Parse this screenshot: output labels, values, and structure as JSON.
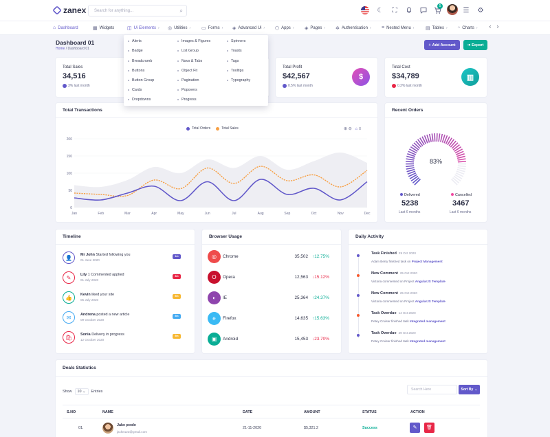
{
  "topbar": {
    "logo": "zanex",
    "search_placeholder": "Search for anything...",
    "cart_count": "5",
    "icons": [
      "flag-us-icon",
      "moon-icon",
      "fullscreen-icon",
      "bell-icon",
      "message-icon",
      "cart-icon",
      "avatar",
      "menu-icon",
      "gear-icon"
    ]
  },
  "nav": {
    "items": [
      {
        "label": "Dashboard",
        "icon": "home-icon",
        "active": true
      },
      {
        "label": "Widgets",
        "icon": "grid-icon"
      },
      {
        "label": "Ui Elements",
        "icon": "box-icon",
        "has_menu": true,
        "active": true
      },
      {
        "label": "Utilities",
        "icon": "utilities-icon",
        "has_menu": true
      },
      {
        "label": "Forms",
        "icon": "file-icon",
        "has_menu": true
      },
      {
        "label": "Advanced Ui",
        "icon": "layers-icon",
        "has_menu": true
      },
      {
        "label": "Apps",
        "icon": "package-icon",
        "has_menu": true
      },
      {
        "label": "Pages",
        "icon": "layers-icon",
        "has_menu": true
      },
      {
        "label": "Authentication",
        "icon": "settings-icon",
        "has_menu": true
      },
      {
        "label": "Nested Menu",
        "icon": "sliders-icon",
        "has_menu": true
      },
      {
        "label": "Tables",
        "icon": "table-icon",
        "has_menu": true
      },
      {
        "label": "Charts",
        "icon": "pie-icon",
        "has_menu": true
      }
    ]
  },
  "dropdown": {
    "col1": [
      "Alerts",
      "Badge",
      "Breadcrumb",
      "Buttons",
      "Button Group",
      "Cards",
      "Dropdowns"
    ],
    "col2": [
      "Images & Figures",
      "List Group",
      "Navs & Tabs",
      "Object Fit",
      "Pagination",
      "Popovers",
      "Progress"
    ],
    "col3": [
      "Spinners",
      "Toasts",
      "Tags",
      "Tooltips",
      "Typography"
    ]
  },
  "page": {
    "title": "Dashboard 01",
    "breadcrumb_home": "Home",
    "breadcrumb_current": "Dashboard 01",
    "add_account": "Add Account",
    "export": "Export"
  },
  "stats": [
    {
      "label": "Total Sales",
      "value": "34,516",
      "sub": "3% last month",
      "color": "#6259ca",
      "icon": "",
      "direction": "up"
    },
    {
      "label": "Total Profit",
      "value": "$42,567",
      "sub": "0.5% last month",
      "color": "#6259ca",
      "icon": "$",
      "direction": "up"
    },
    {
      "label": "Total Cost",
      "value": "$34,789",
      "sub": "0.2% last month",
      "color": "#e82646",
      "icon": "▥",
      "direction": "down"
    }
  ],
  "transactions": {
    "title": "Total Transactions",
    "legend": [
      "Total Orders",
      "Total Sales"
    ]
  },
  "chart_data": {
    "type": "line",
    "title": "Total Transactions",
    "categories": [
      "Jan",
      "Feb",
      "Mar",
      "Apr",
      "May",
      "Jun",
      "Jul",
      "Aug",
      "Sep",
      "Oct",
      "Nov",
      "Dec"
    ],
    "ylim": [
      0,
      200
    ],
    "yticks": [
      0,
      50,
      100,
      150,
      200
    ],
    "series": [
      {
        "name": "Total Orders",
        "color": "#6259ca",
        "values": [
          28,
          22,
          42,
          62,
          20,
          75,
          20,
          82,
          38,
          56,
          22,
          75
        ]
      },
      {
        "name": "Total Sales",
        "color": "#f7a045",
        "values": [
          42,
          38,
          35,
          80,
          55,
          115,
          70,
          120,
          78,
          95,
          60,
          108
        ]
      },
      {
        "name": "",
        "color": "#eeeef3",
        "values": [
          65,
          60,
          80,
          118,
          100,
          140,
          115,
          150,
          110,
          135,
          160,
          130
        ]
      }
    ]
  },
  "recent_orders": {
    "title": "Recent Orders",
    "percent": "83%",
    "delivered_label": "Delivered",
    "delivered_value": "5238",
    "delivered_sub": "Last 6 months",
    "cancelled_label": "Cancelled",
    "cancelled_value": "3467",
    "cancelled_sub": "Last 6 months",
    "fraction": 0.83
  },
  "timeline": {
    "title": "Timeline",
    "items": [
      {
        "name": "Mr John",
        "text": "Started following you",
        "date": "01 June 2020",
        "pill": "1m",
        "color": "#6259ca",
        "icon": "👤"
      },
      {
        "name": "Lily",
        "text": "1 Commented applied",
        "date": "01 July 2020",
        "pill": "3m",
        "color": "#e82646",
        "icon": "✎"
      },
      {
        "name": "Kevin",
        "text": "liked your site",
        "date": "05 July 2020",
        "pill": "5m",
        "color": "#09ad95",
        "icon": "👍"
      },
      {
        "name": "Andrena",
        "text": "posted a new article",
        "date": "09 October 2020",
        "pill": "5m",
        "color": "#45aaf2",
        "icon": "✉"
      },
      {
        "name": "Sonia",
        "text": "Delivery in progress",
        "date": "12 October 2020",
        "pill": "5m",
        "color": "#e82646",
        "icon": "🛍"
      }
    ],
    "pill_colors": [
      "#6259ca",
      "#e82646",
      "#f7b731",
      "#45aaf2",
      "#f7b731"
    ]
  },
  "browser": {
    "title": "Browser Usage",
    "items": [
      {
        "name": "Chrome",
        "value": "35,502",
        "pct": "12.75%",
        "up": true,
        "color": "#ef4b4b",
        "icon": "◎"
      },
      {
        "name": "Opera",
        "value": "12,563",
        "pct": "15.12%",
        "up": false,
        "color": "#c8102e",
        "icon": "O"
      },
      {
        "name": "IE",
        "value": "25,364",
        "pct": "24.37%",
        "up": true,
        "color": "#8e44ad",
        "icon": "◐"
      },
      {
        "name": "Firefox",
        "value": "14,635",
        "pct": "15.63%",
        "up": true,
        "color": "#3abaf4",
        "icon": "e"
      },
      {
        "name": "Android",
        "value": "15,453",
        "pct": "23.70%",
        "up": false,
        "color": "#09ad95",
        "icon": "▣"
      }
    ]
  },
  "activity": {
    "title": "Daily Activity",
    "items": [
      {
        "title": "Task Finished",
        "date": "29 Oct 2020",
        "desc": "Adam Berry finished task on",
        "link": "Project Management",
        "color": "#6259ca"
      },
      {
        "title": "New Comment",
        "date": "25 Oct 2020",
        "desc": "Victoria commented on Project",
        "link": "AngularJS Template",
        "color": "#f7592c"
      },
      {
        "title": "New Comment",
        "date": "25 Oct 2020",
        "desc": "Victoria commented on Project",
        "link": "AngularJS Template",
        "color": "#6259ca"
      },
      {
        "title": "Task Overdue",
        "date": "14 Oct 2020",
        "desc": "Petey Cruiser finished task",
        "link": "Integrated management",
        "color": "#f7592c"
      },
      {
        "title": "Task Overdue",
        "date": "29 Oct 2020",
        "desc": "Petey Cruiser finished task",
        "link": "Integrated management",
        "color": "#6259ca"
      }
    ]
  },
  "deals": {
    "title": "Deals Statistics",
    "show": "Show",
    "entries_value": "10",
    "entries": "Entries",
    "search_placeholder": "Search Here",
    "sort_by": "Sort By",
    "headers": [
      "S.NO",
      "NAME",
      "DATE",
      "AMOUNT",
      "STATUS",
      "ACTION"
    ],
    "rows": [
      {
        "sno": "01.",
        "name": "Jake poole",
        "email": "jacke123@gmail.com",
        "date": "21-11-2020",
        "amount": "$5,321.2",
        "status": "Success"
      }
    ]
  }
}
